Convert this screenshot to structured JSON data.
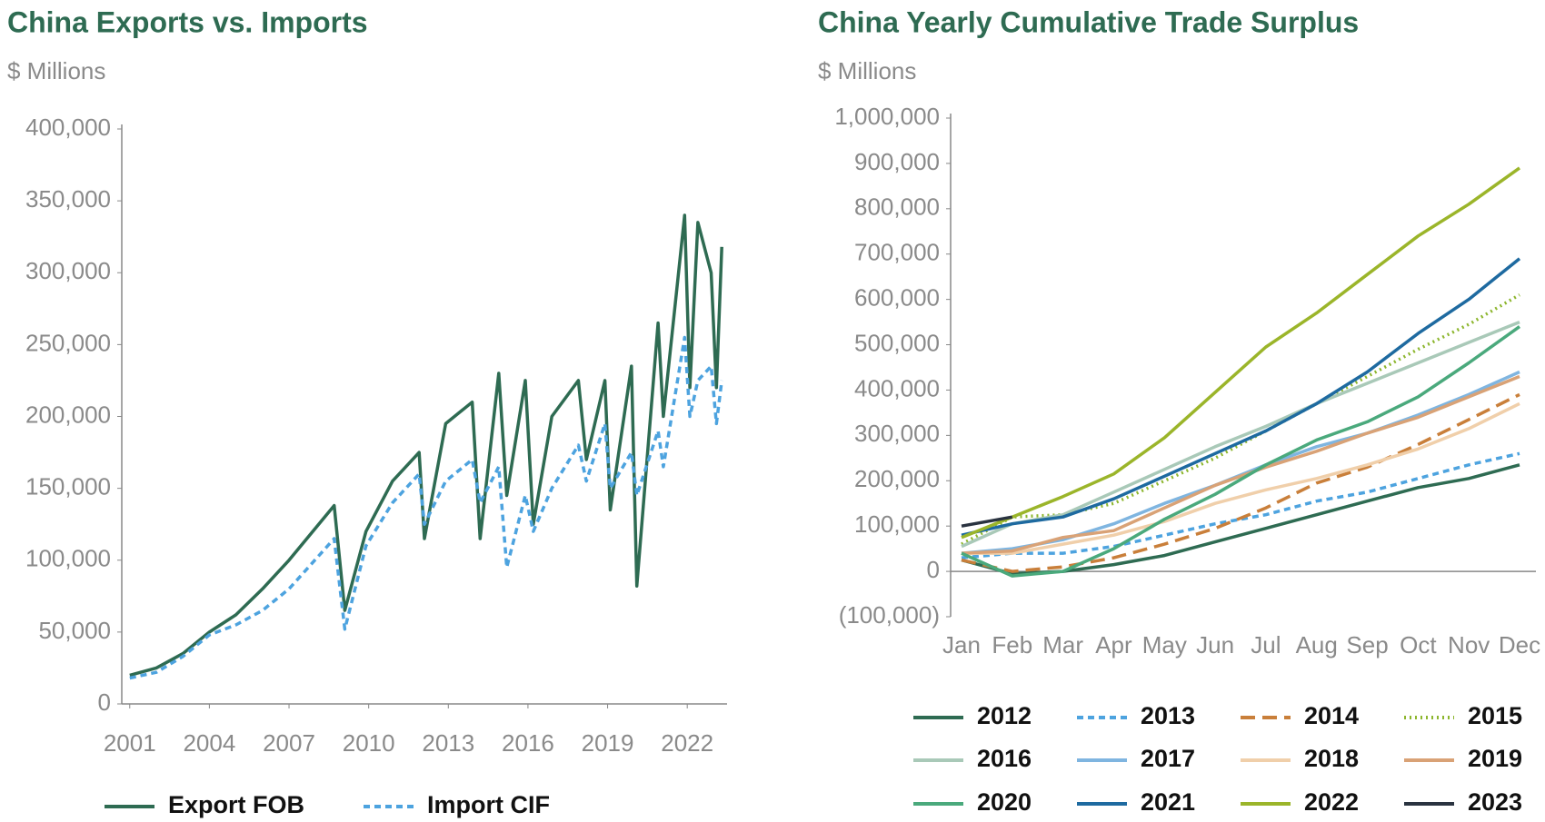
{
  "chart_data": [
    {
      "type": "line",
      "title": "China Exports vs. Imports",
      "subtitle": "$ Millions",
      "x": [
        2001.0,
        2002.0,
        2003.0,
        2004.0,
        2005.0,
        2006.0,
        2007.0,
        2008.7,
        2009.1,
        2009.9,
        2010.9,
        2011.9,
        2012.1,
        2012.9,
        2013.9,
        2014.2,
        2014.9,
        2015.2,
        2015.9,
        2016.2,
        2016.9,
        2017.9,
        2018.2,
        2018.9,
        2019.1,
        2019.9,
        2020.1,
        2020.9,
        2021.1,
        2021.9,
        2022.1,
        2022.4,
        2022.9,
        2023.1,
        2023.3
      ],
      "xlim": [
        2000.7,
        2023.5
      ],
      "xticks": [
        2001,
        2004,
        2007,
        2010,
        2013,
        2016,
        2019,
        2022
      ],
      "ylim": [
        0,
        400000
      ],
      "yticks": [
        0,
        {
          "value": 50000,
          "label": "50,000"
        },
        {
          "value": 100000,
          "label": "100,000"
        },
        {
          "value": 150000,
          "label": "150,000"
        },
        {
          "value": 200000,
          "label": "200,000"
        },
        {
          "value": 250000,
          "label": "250,000"
        },
        {
          "value": 300000,
          "label": "300,000"
        },
        {
          "value": 350000,
          "label": "350,000"
        },
        {
          "value": 400000,
          "label": "400,000"
        }
      ],
      "series": [
        {
          "name": "Export FOB",
          "color": "#2e6b52",
          "dash": "solid",
          "values": [
            20000,
            25000,
            35000,
            50000,
            62000,
            80000,
            100000,
            138000,
            65000,
            120000,
            155000,
            175000,
            115000,
            195000,
            210000,
            115000,
            230000,
            145000,
            225000,
            125000,
            200000,
            225000,
            170000,
            225000,
            135000,
            235000,
            82000,
            265000,
            200000,
            340000,
            220000,
            335000,
            300000,
            220000,
            318000
          ]
        },
        {
          "name": "Import CIF",
          "color": "#4da3df",
          "dash": "dashed",
          "values": [
            18000,
            22000,
            33000,
            48000,
            55000,
            65000,
            80000,
            115000,
            52000,
            110000,
            140000,
            160000,
            125000,
            155000,
            170000,
            140000,
            165000,
            95000,
            145000,
            120000,
            150000,
            180000,
            155000,
            195000,
            150000,
            175000,
            145000,
            190000,
            165000,
            255000,
            200000,
            225000,
            235000,
            195000,
            225000
          ]
        }
      ]
    },
    {
      "type": "line",
      "title": "China Yearly Cumulative Trade Surplus",
      "subtitle": "$ Millions",
      "categories": [
        "Jan",
        "Feb",
        "Mar",
        "Apr",
        "May",
        "Jun",
        "Jul",
        "Aug",
        "Sep",
        "Oct",
        "Nov",
        "Dec"
      ],
      "ylim": [
        -100000,
        1000000
      ],
      "yticks": [
        {
          "value": -100000,
          "label": "(100,000)"
        },
        0,
        {
          "value": 100000,
          "label": "100,000"
        },
        {
          "value": 200000,
          "label": "200,000"
        },
        {
          "value": 300000,
          "label": "300,000"
        },
        {
          "value": 400000,
          "label": "400,000"
        },
        {
          "value": 500000,
          "label": "500,000"
        },
        {
          "value": 600000,
          "label": "600,000"
        },
        {
          "value": 700000,
          "label": "700,000"
        },
        {
          "value": 800000,
          "label": "800,000"
        },
        {
          "value": 900000,
          "label": "900,000"
        },
        {
          "value": 1000000,
          "label": "1,000,000"
        }
      ],
      "series": [
        {
          "name": "2012",
          "color": "#2e6b52",
          "dash": "solid",
          "values": [
            25000,
            -5000,
            0,
            15000,
            35000,
            65000,
            95000,
            125000,
            155000,
            185000,
            205000,
            235000
          ]
        },
        {
          "name": "2013",
          "color": "#4da3df",
          "dash": "dashed",
          "values": [
            30000,
            40000,
            40000,
            55000,
            80000,
            105000,
            125000,
            155000,
            175000,
            205000,
            235000,
            260000
          ]
        },
        {
          "name": "2014",
          "color": "#c97f3a",
          "dash": "longdash",
          "values": [
            25000,
            0,
            10000,
            30000,
            60000,
            95000,
            140000,
            195000,
            230000,
            280000,
            335000,
            390000
          ]
        },
        {
          "name": "2015",
          "color": "#8db62e",
          "dash": "dotted",
          "values": [
            60000,
            120000,
            125000,
            150000,
            200000,
            250000,
            310000,
            370000,
            430000,
            490000,
            545000,
            610000
          ]
        },
        {
          "name": "2016",
          "color": "#a9c9b8",
          "dash": "solid",
          "values": [
            55000,
            105000,
            125000,
            175000,
            225000,
            275000,
            320000,
            370000,
            415000,
            460000,
            505000,
            550000
          ]
        },
        {
          "name": "2017",
          "color": "#7fb5e0",
          "dash": "solid",
          "values": [
            40000,
            50000,
            70000,
            105000,
            150000,
            190000,
            235000,
            275000,
            305000,
            345000,
            390000,
            440000
          ]
        },
        {
          "name": "2018",
          "color": "#f0cfaa",
          "dash": "solid",
          "values": [
            40000,
            40000,
            60000,
            80000,
            110000,
            150000,
            180000,
            205000,
            235000,
            270000,
            315000,
            370000
          ]
        },
        {
          "name": "2019",
          "color": "#d9a276",
          "dash": "solid",
          "values": [
            40000,
            45000,
            75000,
            90000,
            140000,
            190000,
            230000,
            265000,
            305000,
            340000,
            385000,
            430000
          ]
        },
        {
          "name": "2020",
          "color": "#4aa97c",
          "dash": "solid",
          "values": [
            40000,
            -10000,
            0,
            50000,
            115000,
            170000,
            235000,
            290000,
            330000,
            385000,
            460000,
            540000
          ]
        },
        {
          "name": "2021",
          "color": "#1e6aa0",
          "dash": "solid",
          "values": [
            80000,
            105000,
            120000,
            160000,
            210000,
            260000,
            310000,
            370000,
            440000,
            525000,
            600000,
            690000
          ]
        },
        {
          "name": "2022",
          "color": "#9bb52a",
          "dash": "solid",
          "values": [
            75000,
            120000,
            165000,
            215000,
            295000,
            395000,
            495000,
            570000,
            655000,
            740000,
            810000,
            890000
          ]
        },
        {
          "name": "2023",
          "color": "#2a3340",
          "dash": "solid",
          "values": [
            100000,
            120000,
            null,
            null,
            null,
            null,
            null,
            null,
            null,
            null,
            null,
            null
          ]
        }
      ]
    }
  ]
}
